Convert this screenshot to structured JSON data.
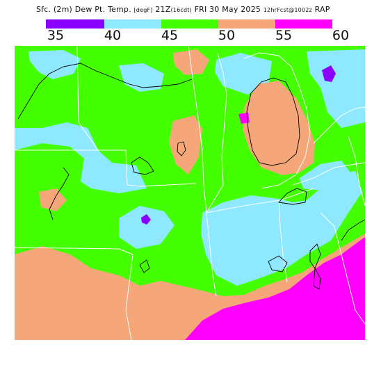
{
  "title": {
    "field": "Sfc. (2m) Dew Pt. Temp.",
    "units": "[degF]",
    "valid": "21Z",
    "local": "(16cdt)",
    "date": "FRI 30 May 2025",
    "forecast": "12hrFcst@1002z",
    "model": "RAP"
  },
  "legend": {
    "ticks": [
      "35",
      "40",
      "45",
      "50",
      "55",
      "60"
    ],
    "bins": [
      {
        "range": "35-40",
        "color": "#8a00ff"
      },
      {
        "range": "40-45",
        "color": "#8ee8ff"
      },
      {
        "range": "45-50",
        "color": "#44ff00"
      },
      {
        "range": "50-55",
        "color": "#f5a77a"
      },
      {
        "range": "55-60",
        "color": "#ff00ff"
      }
    ]
  },
  "colors": {
    "purple": "#8a00ff",
    "cyan": "#8ee8ff",
    "green": "#44ff00",
    "salmon": "#f5a77a",
    "magenta": "#ff00ff",
    "borders": "#ffffff",
    "contours": "#000000"
  }
}
